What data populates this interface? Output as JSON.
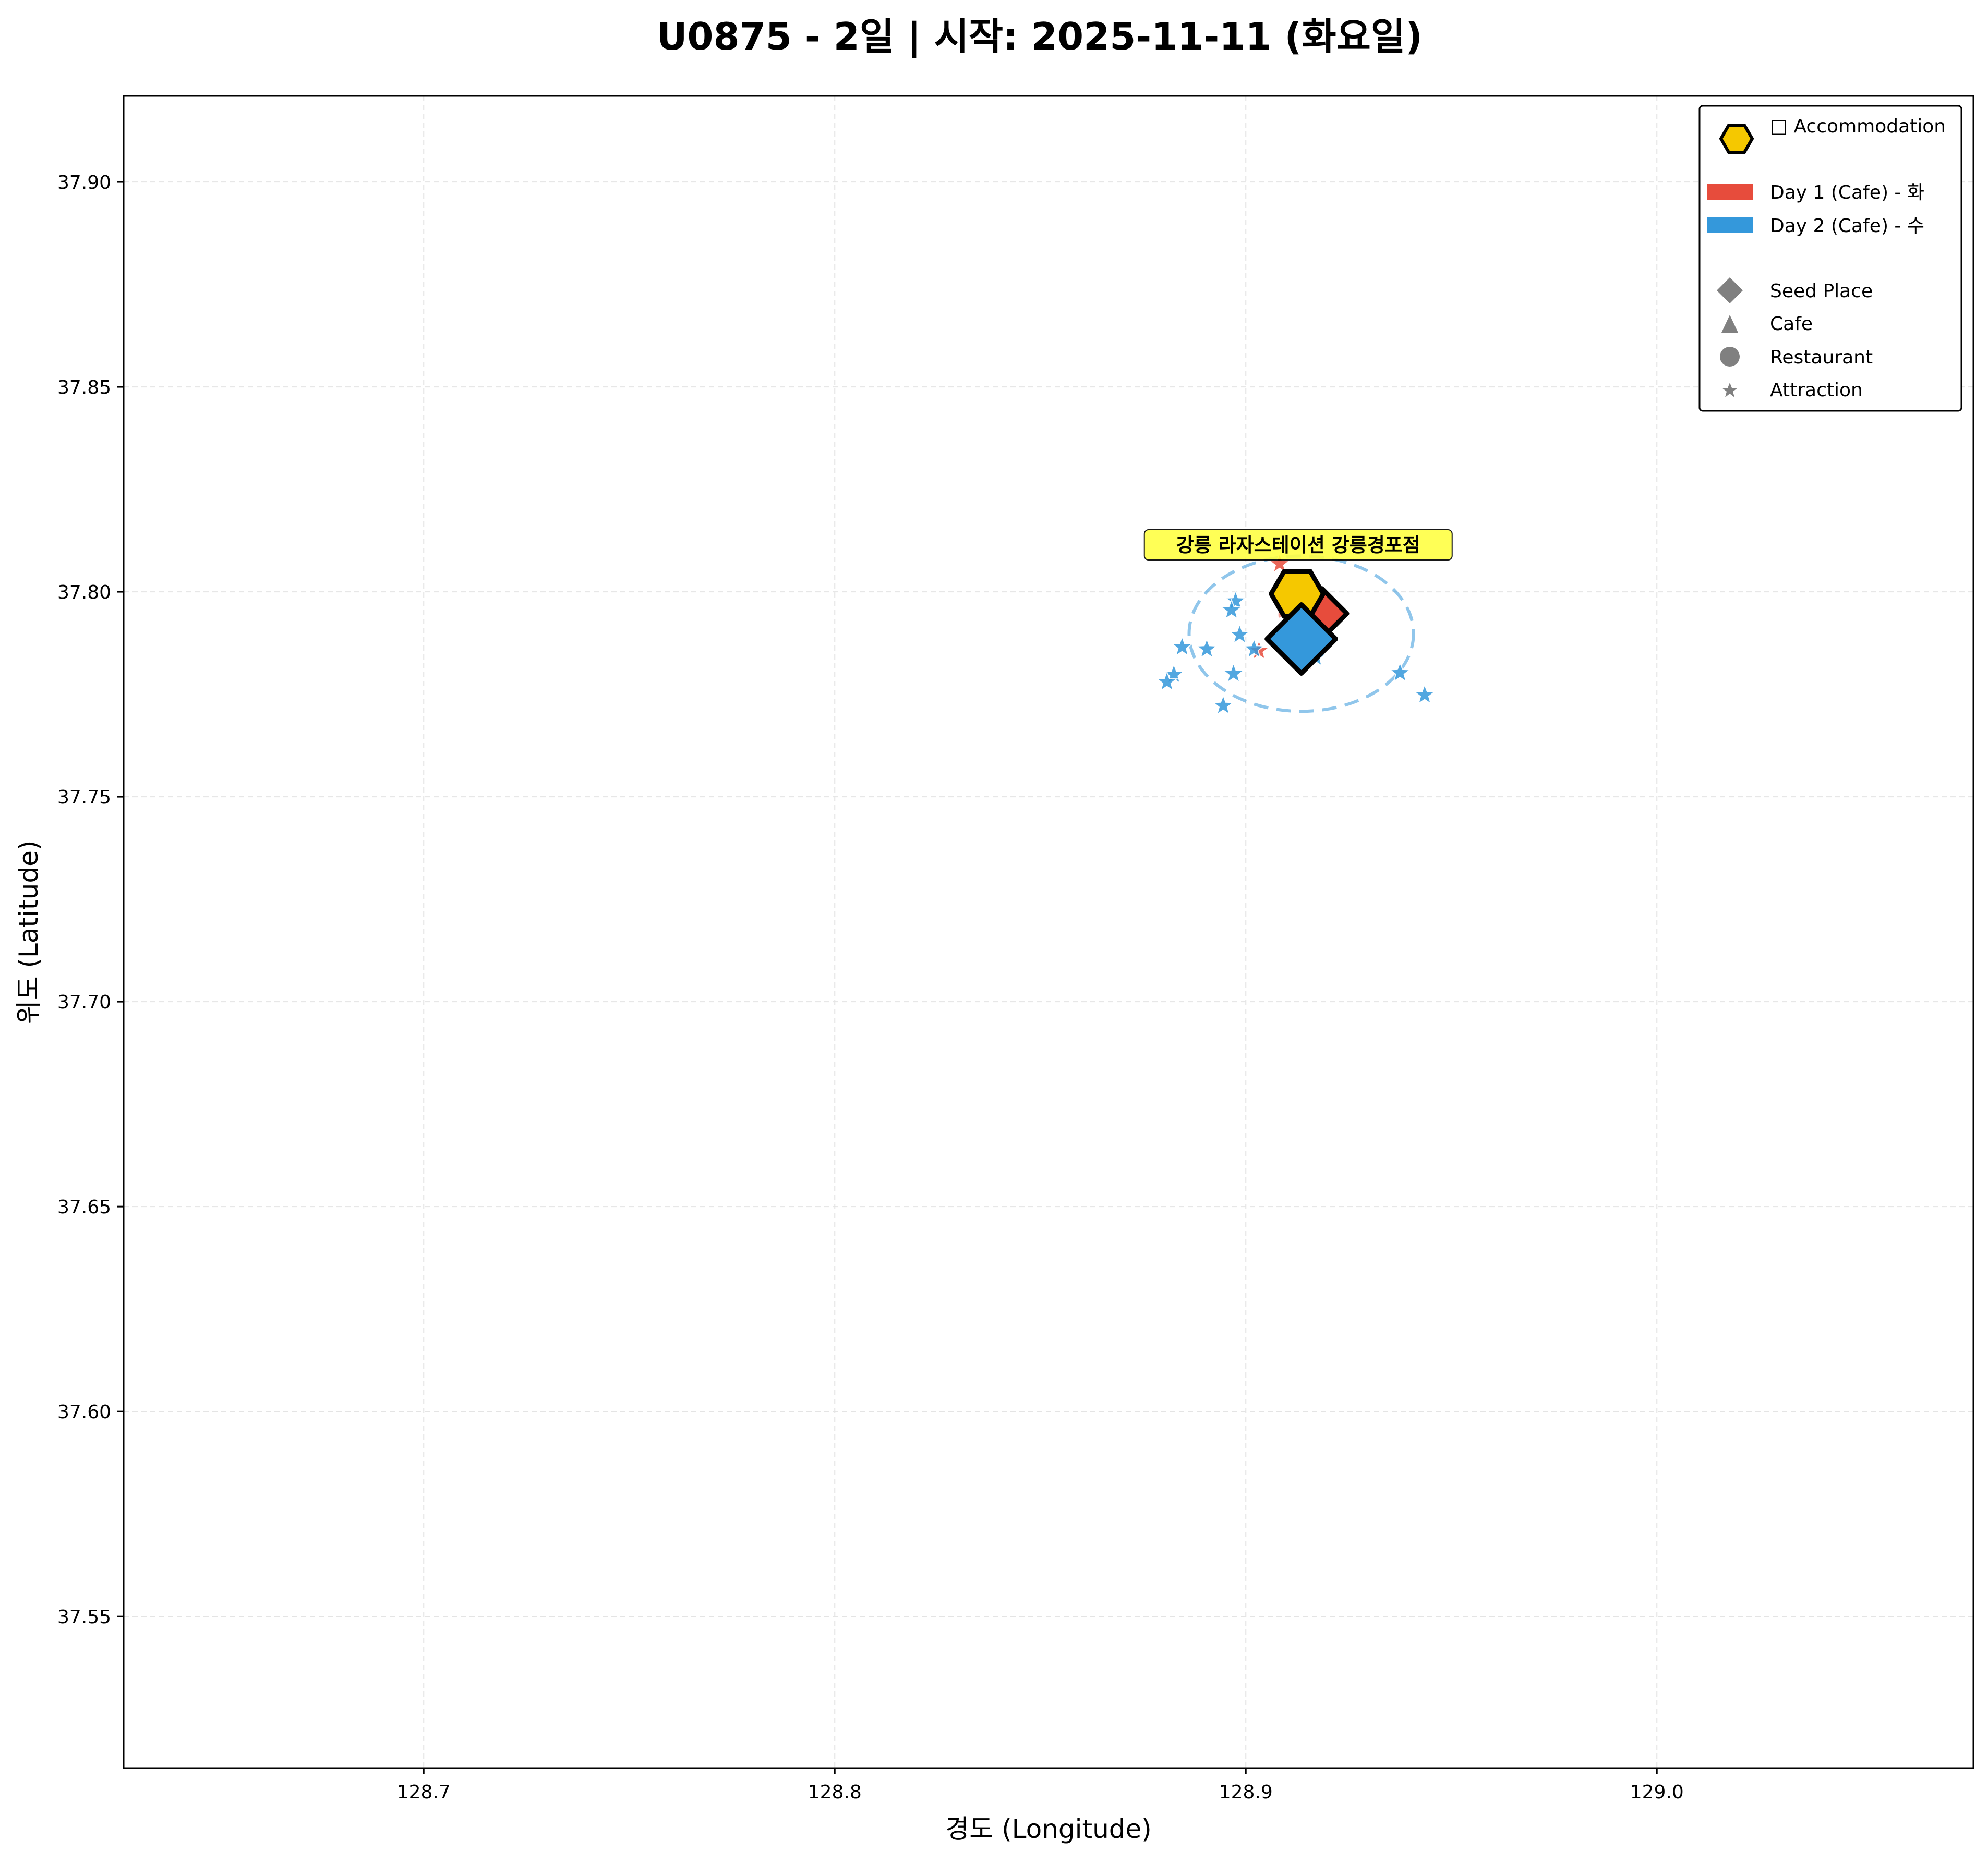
{
  "chart_data": {
    "type": "scatter",
    "title": "U0875 - 2일 | 시작: 2025-11-11 (화요일)",
    "xlabel": "경도 (Longitude)",
    "ylabel": "위도 (Latitude)",
    "xlim": [
      128.627,
      129.077
    ],
    "ylim": [
      37.513,
      37.921
    ],
    "x_ticks": [
      "128.7",
      "128.8",
      "128.9",
      "129.0"
    ],
    "x_tick_values": [
      128.7,
      128.8,
      128.9,
      129.0
    ],
    "y_ticks": [
      "37.55",
      "37.60",
      "37.65",
      "37.70",
      "37.75",
      "37.80",
      "37.85",
      "37.90"
    ],
    "y_tick_values": [
      37.55,
      37.6,
      37.65,
      37.7,
      37.75,
      37.8,
      37.85,
      37.9
    ],
    "grid": true,
    "legend_position": "top-right",
    "legend": {
      "accommodation": "□ Accommodation",
      "days": [
        "Day 1 (Cafe) - 화",
        "Day 2 (Cafe) - 수"
      ],
      "types": [
        "Seed Place",
        "Cafe",
        "Restaurant",
        "Attraction"
      ]
    },
    "colors": {
      "day1": "#e74c3c",
      "day2": "#3498db",
      "accommodation": "#f5c800",
      "type_marker": "#808080",
      "annotation_bg": "#ffff44"
    },
    "accommodation": {
      "name": "강릉 라자스테이션 강릉경포점",
      "lon": 128.9125,
      "lat": 37.7995
    },
    "radius_circles": [
      {
        "day": 1,
        "lon": 128.9148,
        "lat": 37.7944,
        "radius_deg": 0.0065
      },
      {
        "day": 2,
        "lon": 128.9135,
        "lat": 37.7898,
        "radius_deg": 0.0273
      }
    ],
    "series": [
      {
        "name": "Day 1 (Cafe) - 화",
        "seed": {
          "lon": 128.9185,
          "lat": 37.7947
        },
        "attractions": [
          {
            "lon": 128.9082,
            "lat": 37.8068
          },
          {
            "lon": 128.9032,
            "lat": 37.7856
          },
          {
            "lon": 128.917,
            "lat": 37.7895
          },
          {
            "lon": 128.9145,
            "lat": 37.783
          }
        ]
      },
      {
        "name": "Day 2 (Cafe) - 수",
        "seed": {
          "lon": 128.9135,
          "lat": 37.7885
        },
        "attractions": [
          {
            "lon": 128.8975,
            "lat": 37.7977
          },
          {
            "lon": 128.8965,
            "lat": 37.7955
          },
          {
            "lon": 128.8985,
            "lat": 37.7895
          },
          {
            "lon": 128.8845,
            "lat": 37.7865
          },
          {
            "lon": 128.8905,
            "lat": 37.786
          },
          {
            "lon": 128.897,
            "lat": 37.78
          },
          {
            "lon": 128.8825,
            "lat": 37.7798
          },
          {
            "lon": 128.8808,
            "lat": 37.778
          },
          {
            "lon": 128.8945,
            "lat": 37.7722
          },
          {
            "lon": 128.9375,
            "lat": 37.7802
          },
          {
            "lon": 128.9435,
            "lat": 37.7748
          },
          {
            "lon": 128.902,
            "lat": 37.786
          },
          {
            "lon": 128.917,
            "lat": 37.784
          }
        ]
      }
    ]
  }
}
